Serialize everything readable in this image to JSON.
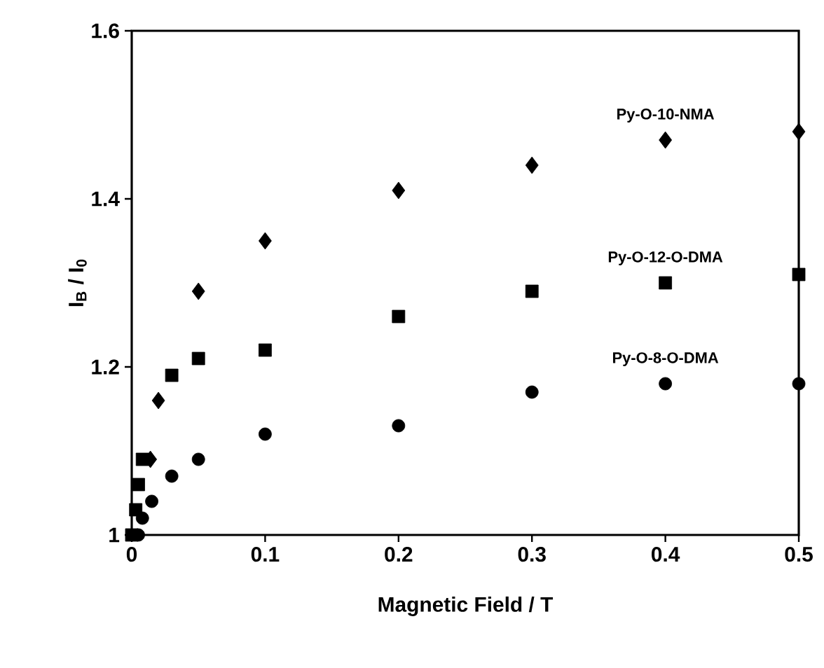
{
  "chart_data": {
    "type": "scatter",
    "xlabel": "Magnetic Field / T",
    "ylabel": "I$_{B}$ / I$_{0}$",
    "xlim": [
      0,
      0.5
    ],
    "ylim": [
      1,
      1.6
    ],
    "xticks": [
      0,
      0.1,
      0.2,
      0.3,
      0.4,
      0.5
    ],
    "yticks": [
      1,
      1.2,
      1.4,
      1.6
    ],
    "grid": false,
    "legend": false,
    "series": [
      {
        "name": "Py-O-10-NMA",
        "color": "#000000",
        "marker": "diamond",
        "x": [
          0.014,
          0.02,
          0.05,
          0.1,
          0.2,
          0.3,
          0.4,
          0.5
        ],
        "values": [
          1.09,
          1.16,
          1.29,
          1.35,
          1.41,
          1.44,
          1.47,
          1.48
        ]
      },
      {
        "name": "Py-O-12-O-DMA",
        "color": "#000000",
        "marker": "square",
        "x": [
          0,
          0.003,
          0.005,
          0.008,
          0.03,
          0.05,
          0.1,
          0.2,
          0.3,
          0.4,
          0.5
        ],
        "values": [
          1.0,
          1.03,
          1.06,
          1.09,
          1.19,
          1.21,
          1.22,
          1.26,
          1.29,
          1.3,
          1.31
        ]
      },
      {
        "name": "Py-O-8-O-DMA",
        "color": "#000000",
        "marker": "circle",
        "x": [
          0.005,
          0.008,
          0.015,
          0.03,
          0.05,
          0.1,
          0.2,
          0.3,
          0.4,
          0.5
        ],
        "values": [
          1.0,
          1.02,
          1.04,
          1.07,
          1.09,
          1.12,
          1.13,
          1.17,
          1.18,
          1.18
        ]
      }
    ]
  }
}
